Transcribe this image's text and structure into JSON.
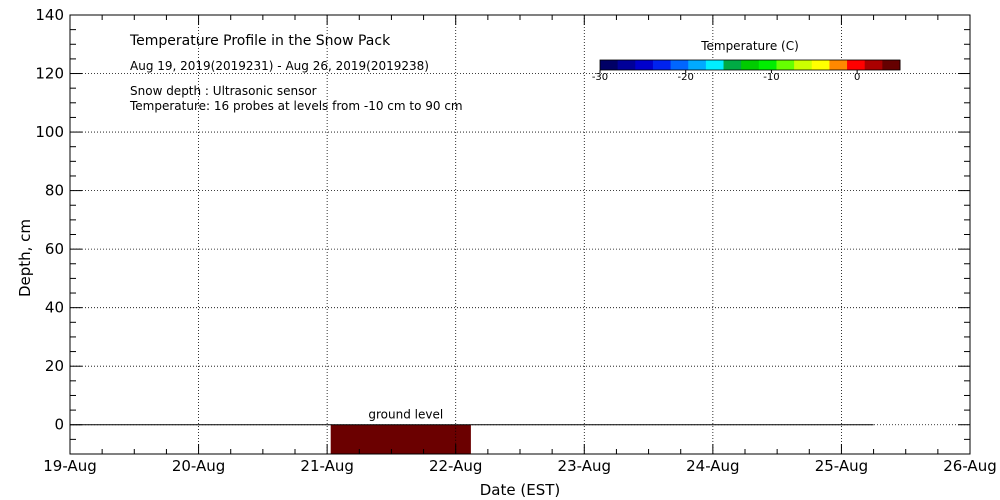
{
  "chart_data": {
    "type": "heatmap",
    "title": "Temperature Profile in the Snow Pack",
    "subtitle": "Aug 19, 2019(2019231) - Aug 26, 2019(2019238)",
    "notes": [
      "Snow depth : Ultrasonic sensor",
      "Temperature: 16 probes at levels from -10 cm to 90 cm"
    ],
    "xlabel": "Date (EST)",
    "ylabel": "Depth, cm",
    "x_ticks": [
      "19-Aug",
      "20-Aug",
      "21-Aug",
      "22-Aug",
      "23-Aug",
      "24-Aug",
      "25-Aug",
      "26-Aug"
    ],
    "xlim": [
      "2019-08-19",
      "2019-08-26"
    ],
    "y_ticks": [
      0,
      20,
      40,
      60,
      80,
      100,
      120,
      140
    ],
    "ylim": [
      -10,
      140
    ],
    "grid": true,
    "ground_level": {
      "label": "ground level",
      "depth": 0,
      "x_start": "2019-08-19",
      "x_end": "2019-08-25T06:00"
    },
    "temperature_block": {
      "x_start": "2019-08-21T00:40",
      "x_end": "2019-08-22T02:50",
      "depth_top": 0,
      "depth_bottom": -10,
      "temperature_c": 5,
      "color": "#6b0000"
    },
    "colorbar": {
      "title": "Temperature (C)",
      "ticks": [
        "-30",
        "-20",
        "-10",
        "0"
      ],
      "range": [
        -30,
        5
      ],
      "colors": [
        "#000066",
        "#000099",
        "#0000cc",
        "#0022ee",
        "#0066ff",
        "#00aaff",
        "#00eeff",
        "#00aa44",
        "#00cc00",
        "#00ee00",
        "#66ff00",
        "#ccff00",
        "#ffff00",
        "#ff8800",
        "#ff0000",
        "#aa0000",
        "#660000"
      ]
    }
  }
}
